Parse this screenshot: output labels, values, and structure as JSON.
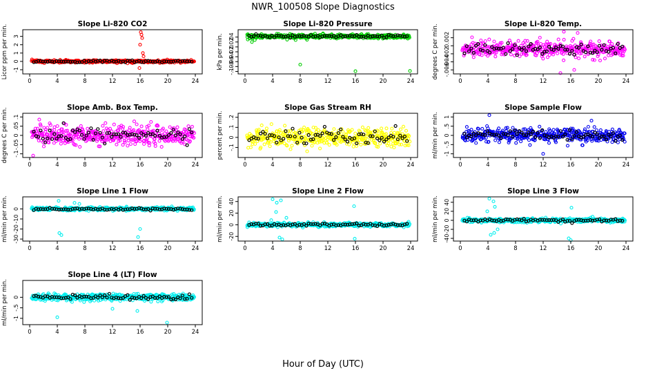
{
  "title": "NWR_100508  Slope Diagnostics",
  "xlabel": "Hour of Day (UTC)",
  "chart_data": [
    {
      "type": "scatter",
      "title": "Slope Li-820 CO2",
      "ylabel": "Licor ppm per min.",
      "xlim": [
        0,
        24
      ],
      "ylim": [
        -1.5,
        3.8
      ],
      "yticks": [
        -1,
        0,
        1,
        2,
        3
      ],
      "xticks": [
        0,
        4,
        8,
        12,
        16,
        20,
        24
      ],
      "color": "#ff0000",
      "center": 0,
      "spread": 0.15,
      "outliers": [
        [
          16.1,
          3.5
        ],
        [
          16.2,
          3.2
        ],
        [
          16.3,
          2.8
        ],
        [
          16.0,
          2.0
        ],
        [
          16.4,
          1.0
        ],
        [
          16.5,
          0.6
        ],
        [
          15.9,
          -0.8
        ]
      ]
    },
    {
      "type": "scatter",
      "title": "Slope Li-820 Pressure",
      "ylabel": "kPa per min.",
      "xlim": [
        0,
        24
      ],
      "ylim": [
        -0.11,
        0.07
      ],
      "yticks": [
        -0.1,
        -0.08,
        -0.06,
        -0.04,
        -0.02,
        0,
        0.02,
        0.04
      ],
      "xticks": [
        0,
        4,
        8,
        12,
        16,
        20,
        24
      ],
      "color": "#00cc00",
      "center": 0.043,
      "spread": 0.008,
      "outliers": [
        [
          8.0,
          -0.072
        ],
        [
          16.0,
          -0.099
        ],
        [
          23.9,
          -0.098
        ],
        [
          1.0,
          0.02
        ],
        [
          0.4,
          0.03
        ]
      ]
    },
    {
      "type": "scatter",
      "title": "Slope Li-820 Temp.",
      "ylabel": "degrees C per min.",
      "xlim": [
        0,
        24
      ],
      "ylim": [
        -0.007,
        0.004
      ],
      "yticks": [
        -0.006,
        -0.004,
        -0.002,
        0,
        0.002
      ],
      "xticks": [
        0,
        4,
        8,
        12,
        16,
        20,
        24
      ],
      "color": "#ff00ff",
      "center": -0.0008,
      "spread": 0.0018,
      "outliers": [
        [
          15.0,
          0.0035
        ],
        [
          17.0,
          0.0032
        ],
        [
          14.5,
          -0.0068
        ],
        [
          16.5,
          -0.006
        ]
      ]
    },
    {
      "type": "scatter",
      "title": "Slope Amb. Box Temp.",
      "ylabel": "degrees C per min.",
      "xlim": [
        0,
        24
      ],
      "ylim": [
        -0.12,
        0.12
      ],
      "yticks": [
        -0.1,
        -0.05,
        0,
        0.05,
        0.1
      ],
      "xticks": [
        0,
        4,
        8,
        12,
        16,
        20,
        24
      ],
      "color": "#ff00ff",
      "center": 0,
      "spread": 0.05,
      "outliers": [
        [
          0.5,
          -0.11
        ]
      ]
    },
    {
      "type": "scatter",
      "title": "Slope Gas Stream RH",
      "ylabel": "percent per min.",
      "xlim": [
        0,
        24
      ],
      "ylim": [
        -0.2,
        0.24
      ],
      "yticks": [
        -0.1,
        0,
        0.1,
        0.2
      ],
      "xticks": [
        0,
        4,
        8,
        12,
        16,
        20,
        24
      ],
      "color": "#ffff00",
      "center": 0,
      "spread": 0.08,
      "outliers": []
    },
    {
      "type": "scatter",
      "title": "Slope Sample Flow",
      "ylabel": "ml/min per min.",
      "xlim": [
        0,
        24
      ],
      "ylim": [
        -1.2,
        1.2
      ],
      "yticks": [
        -1,
        -0.5,
        0,
        0.5,
        1
      ],
      "xticks": [
        0,
        4,
        8,
        12,
        16,
        20,
        24
      ],
      "color": "#0000ee",
      "center": 0,
      "spread": 0.35,
      "outliers": [
        [
          4.2,
          1.1
        ],
        [
          12.0,
          -1.0
        ],
        [
          19.0,
          0.8
        ]
      ]
    },
    {
      "type": "scatter",
      "title": "Slope Line 1 Flow",
      "ylabel": "ml/min per min.",
      "xlim": [
        0,
        24
      ],
      "ylim": [
        -32,
        12
      ],
      "yticks": [
        -30,
        -20,
        -10,
        0
      ],
      "xticks": [
        0,
        4,
        8,
        12,
        16,
        20,
        24
      ],
      "color": "#00eeee",
      "center": 0,
      "spread": 1.5,
      "outliers": [
        [
          4.3,
          -24
        ],
        [
          4.6,
          -26
        ],
        [
          15.7,
          -28
        ],
        [
          16.0,
          -20
        ],
        [
          4.2,
          8
        ],
        [
          6.5,
          6
        ],
        [
          7.2,
          5
        ]
      ]
    },
    {
      "type": "scatter",
      "title": "Slope Line 2 Flow",
      "ylabel": "ml/min per min.",
      "xlim": [
        0,
        24
      ],
      "ylim": [
        -28,
        48
      ],
      "yticks": [
        -20,
        0,
        20,
        40
      ],
      "xticks": [
        0,
        4,
        8,
        12,
        16,
        20,
        24
      ],
      "color": "#00eeee",
      "center": 0,
      "spread": 3,
      "outliers": [
        [
          4.0,
          44
        ],
        [
          4.6,
          38
        ],
        [
          5.2,
          42
        ],
        [
          4.5,
          22
        ],
        [
          5.0,
          -22
        ],
        [
          5.4,
          -25
        ],
        [
          15.8,
          32
        ],
        [
          15.9,
          -24
        ],
        [
          3.8,
          8
        ],
        [
          6.0,
          12
        ]
      ]
    },
    {
      "type": "scatter",
      "title": "Slope Line 3 Flow",
      "ylabel": "ml/min per min.",
      "xlim": [
        0,
        24
      ],
      "ylim": [
        -46,
        52
      ],
      "yticks": [
        -40,
        -20,
        0,
        20,
        40
      ],
      "xticks": [
        0,
        4,
        8,
        12,
        16,
        20,
        24
      ],
      "color": "#00eeee",
      "center": 0,
      "spread": 4,
      "outliers": [
        [
          4.2,
          48
        ],
        [
          4.8,
          42
        ],
        [
          5.0,
          30
        ],
        [
          4.4,
          -32
        ],
        [
          4.9,
          -28
        ],
        [
          15.7,
          -40
        ],
        [
          16.0,
          -44
        ],
        [
          16.1,
          28
        ],
        [
          5.4,
          -20
        ],
        [
          3.9,
          20
        ]
      ]
    },
    {
      "type": "scatter",
      "title": "Slope Line 4 (LT) Flow",
      "ylabel": "ml/min per min.",
      "xlim": [
        0,
        24
      ],
      "ylim": [
        -1.3,
        0.8
      ],
      "yticks": [
        -1,
        -0.5,
        0
      ],
      "xticks": [
        0,
        4,
        8,
        12,
        16,
        20,
        24
      ],
      "color": "#00eeee",
      "center": 0,
      "spread": 0.15,
      "outliers": [
        [
          4.0,
          -0.95
        ],
        [
          19.9,
          -1.2
        ],
        [
          15.6,
          -0.65
        ],
        [
          12.0,
          -0.55
        ]
      ]
    }
  ]
}
